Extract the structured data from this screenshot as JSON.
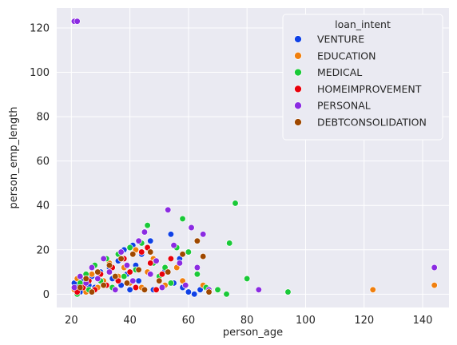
{
  "chart_data": {
    "type": "scatter",
    "title": "",
    "xlabel": "person_age",
    "ylabel": "person_emp_length",
    "xlim": [
      15,
      149
    ],
    "ylim": [
      -6,
      129
    ],
    "xticks": [
      20,
      40,
      60,
      80,
      100,
      120,
      140
    ],
    "yticks": [
      0,
      20,
      40,
      60,
      80,
      100,
      120
    ],
    "grid": true,
    "legend": {
      "title": "loan_intent",
      "placement": "top-right"
    },
    "series": [
      {
        "name": "VENTURE",
        "color": "#0f41e6",
        "points": [
          [
            21,
            5
          ],
          [
            22,
            3
          ],
          [
            23,
            1
          ],
          [
            24,
            6
          ],
          [
            25,
            2
          ],
          [
            26,
            4
          ],
          [
            27,
            8
          ],
          [
            28,
            3
          ],
          [
            30,
            10
          ],
          [
            31,
            5
          ],
          [
            33,
            12
          ],
          [
            34,
            7
          ],
          [
            36,
            15
          ],
          [
            37,
            4
          ],
          [
            38,
            20
          ],
          [
            39,
            9
          ],
          [
            40,
            2
          ],
          [
            41,
            22
          ],
          [
            42,
            13
          ],
          [
            43,
            6
          ],
          [
            44,
            18
          ],
          [
            46,
            31
          ],
          [
            47,
            24
          ],
          [
            48,
            2
          ],
          [
            50,
            7
          ],
          [
            52,
            11
          ],
          [
            54,
            27
          ],
          [
            55,
            5
          ],
          [
            57,
            16
          ],
          [
            58,
            3
          ],
          [
            60,
            1
          ],
          [
            62,
            0
          ],
          [
            64,
            2
          ]
        ]
      },
      {
        "name": "EDUCATION",
        "color": "#f07f0e",
        "points": [
          [
            21,
            2
          ],
          [
            22,
            7
          ],
          [
            24,
            4
          ],
          [
            25,
            1
          ],
          [
            27,
            9
          ],
          [
            29,
            3
          ],
          [
            31,
            6
          ],
          [
            33,
            14
          ],
          [
            35,
            2
          ],
          [
            36,
            8
          ],
          [
            38,
            12
          ],
          [
            40,
            5
          ],
          [
            42,
            20
          ],
          [
            44,
            3
          ],
          [
            46,
            10
          ],
          [
            48,
            16
          ],
          [
            50,
            7
          ],
          [
            52,
            4
          ],
          [
            56,
            12
          ],
          [
            58,
            6
          ],
          [
            65,
            4
          ],
          [
            123,
            2
          ],
          [
            144,
            4
          ]
        ]
      },
      {
        "name": "MEDICAL",
        "color": "#1ac938",
        "points": [
          [
            22,
            0
          ],
          [
            23,
            5
          ],
          [
            25,
            9
          ],
          [
            26,
            2
          ],
          [
            28,
            13
          ],
          [
            30,
            6
          ],
          [
            32,
            16
          ],
          [
            34,
            3
          ],
          [
            36,
            18
          ],
          [
            38,
            8
          ],
          [
            40,
            21
          ],
          [
            42,
            11
          ],
          [
            44,
            23
          ],
          [
            46,
            31
          ],
          [
            48,
            14
          ],
          [
            50,
            8
          ],
          [
            52,
            12
          ],
          [
            54,
            5
          ],
          [
            56,
            21
          ],
          [
            58,
            34
          ],
          [
            60,
            19
          ],
          [
            63,
            9
          ],
          [
            66,
            3
          ],
          [
            70,
            2
          ],
          [
            73,
            0
          ],
          [
            74,
            23
          ],
          [
            76,
            41
          ],
          [
            80,
            7
          ],
          [
            94,
            1
          ]
        ]
      },
      {
        "name": "HOMEIMPROVEMENT",
        "color": "#e8000b",
        "points": [
          [
            22,
            1
          ],
          [
            24,
            3
          ],
          [
            26,
            6
          ],
          [
            28,
            2
          ],
          [
            30,
            9
          ],
          [
            32,
            4
          ],
          [
            34,
            12
          ],
          [
            36,
            6
          ],
          [
            38,
            16
          ],
          [
            40,
            10
          ],
          [
            42,
            3
          ],
          [
            44,
            19
          ],
          [
            46,
            21
          ],
          [
            47,
            14
          ],
          [
            49,
            2
          ],
          [
            51,
            9
          ],
          [
            54,
            16
          ]
        ]
      },
      {
        "name": "PERSONAL",
        "color": "#8b2be2",
        "points": [
          [
            21,
            123
          ],
          [
            22,
            123
          ],
          [
            21,
            3
          ],
          [
            23,
            8
          ],
          [
            25,
            5
          ],
          [
            27,
            12
          ],
          [
            29,
            7
          ],
          [
            31,
            16
          ],
          [
            33,
            10
          ],
          [
            35,
            2
          ],
          [
            37,
            19
          ],
          [
            39,
            13
          ],
          [
            41,
            6
          ],
          [
            43,
            24
          ],
          [
            45,
            28
          ],
          [
            47,
            9
          ],
          [
            49,
            15
          ],
          [
            51,
            3
          ],
          [
            53,
            38
          ],
          [
            55,
            22
          ],
          [
            57,
            14
          ],
          [
            59,
            4
          ],
          [
            61,
            30
          ],
          [
            63,
            12
          ],
          [
            65,
            27
          ],
          [
            67,
            2
          ],
          [
            84,
            2
          ],
          [
            144,
            12
          ]
        ]
      },
      {
        "name": "DEBTCONSOLIDATION",
        "color": "#9f4800",
        "points": [
          [
            23,
            3
          ],
          [
            25,
            7
          ],
          [
            27,
            1
          ],
          [
            29,
            10
          ],
          [
            31,
            4
          ],
          [
            33,
            13
          ],
          [
            35,
            8
          ],
          [
            37,
            16
          ],
          [
            39,
            5
          ],
          [
            41,
            18
          ],
          [
            43,
            11
          ],
          [
            45,
            2
          ],
          [
            47,
            19
          ],
          [
            50,
            6
          ],
          [
            53,
            10
          ],
          [
            58,
            18
          ],
          [
            63,
            24
          ],
          [
            65,
            17
          ],
          [
            67,
            1
          ]
        ]
      }
    ]
  }
}
